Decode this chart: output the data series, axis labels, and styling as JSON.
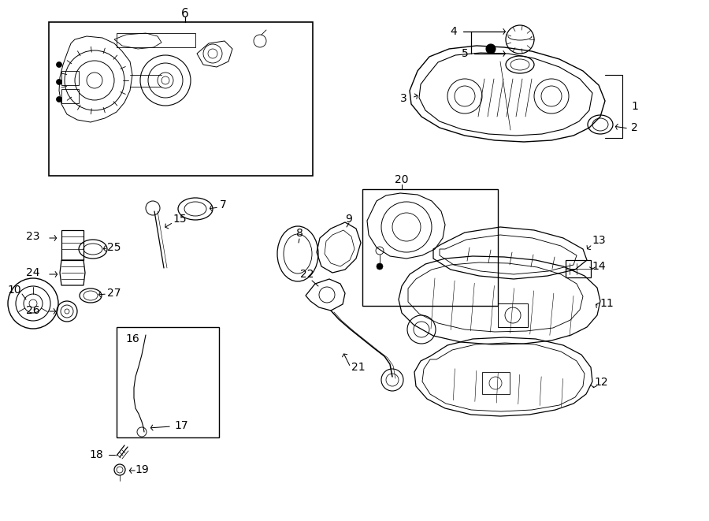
{
  "bg_color": "#ffffff",
  "line_color": "#000000",
  "fig_width": 9.0,
  "fig_height": 6.61,
  "dpi": 100,
  "lw": 0.9,
  "fs": 10
}
